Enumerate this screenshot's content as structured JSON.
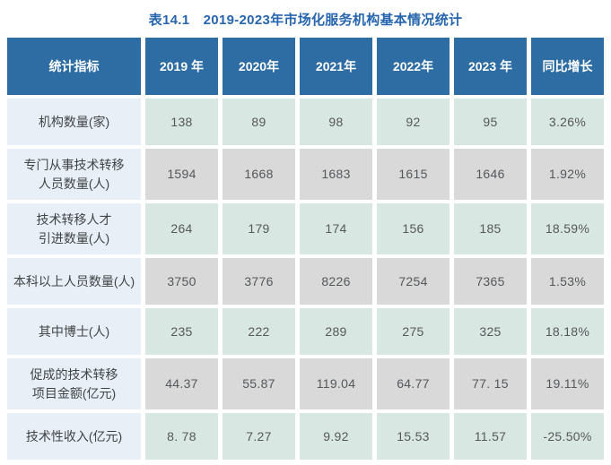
{
  "title": "表14.1　2019-2023年市场化服务机构基本情况统计",
  "colors": {
    "title_text": "#2766ae",
    "header_bg": "#2e6da4",
    "header_text": "#ffffff",
    "label_column_bg": "#e9eff7",
    "row_teal_bg": "#d9e7e2",
    "row_gray_bg": "#d9d9d9",
    "cell_text": "#54585a"
  },
  "table": {
    "headers": [
      "统计指标",
      "2019 年",
      "2020年",
      "2021年",
      "2022年",
      "2023 年",
      "同比增长"
    ],
    "rows": [
      {
        "label": "机构数量(家)",
        "values": [
          "138",
          "89",
          "98",
          "92",
          "95",
          "3.26%"
        ]
      },
      {
        "label": "专门从事技术转移\n人员数量(人)",
        "values": [
          "1594",
          "1668",
          "1683",
          "1615",
          "1646",
          "1.92%"
        ]
      },
      {
        "label": "技术转移人才\n引进数量(人)",
        "values": [
          "264",
          "179",
          "174",
          "156",
          "185",
          "18.59%"
        ]
      },
      {
        "label": "本科以上人员数量(人)",
        "values": [
          "3750",
          "3776",
          "8226",
          "7254",
          "7365",
          "1.53%"
        ]
      },
      {
        "label": "其中博士(人)",
        "values": [
          "235",
          "222",
          "289",
          "275",
          "325",
          "18.18%"
        ]
      },
      {
        "label": "促成的技术转移\n项目金额(亿元)",
        "values": [
          "44.37",
          "55.87",
          "119.04",
          "64.77",
          "77. 15",
          "19.11%"
        ]
      },
      {
        "label": "技术性收入(亿元)",
        "values": [
          "8. 78",
          "7.27",
          "9.92",
          "15.53",
          "11.57",
          "-25.50%"
        ]
      }
    ]
  }
}
